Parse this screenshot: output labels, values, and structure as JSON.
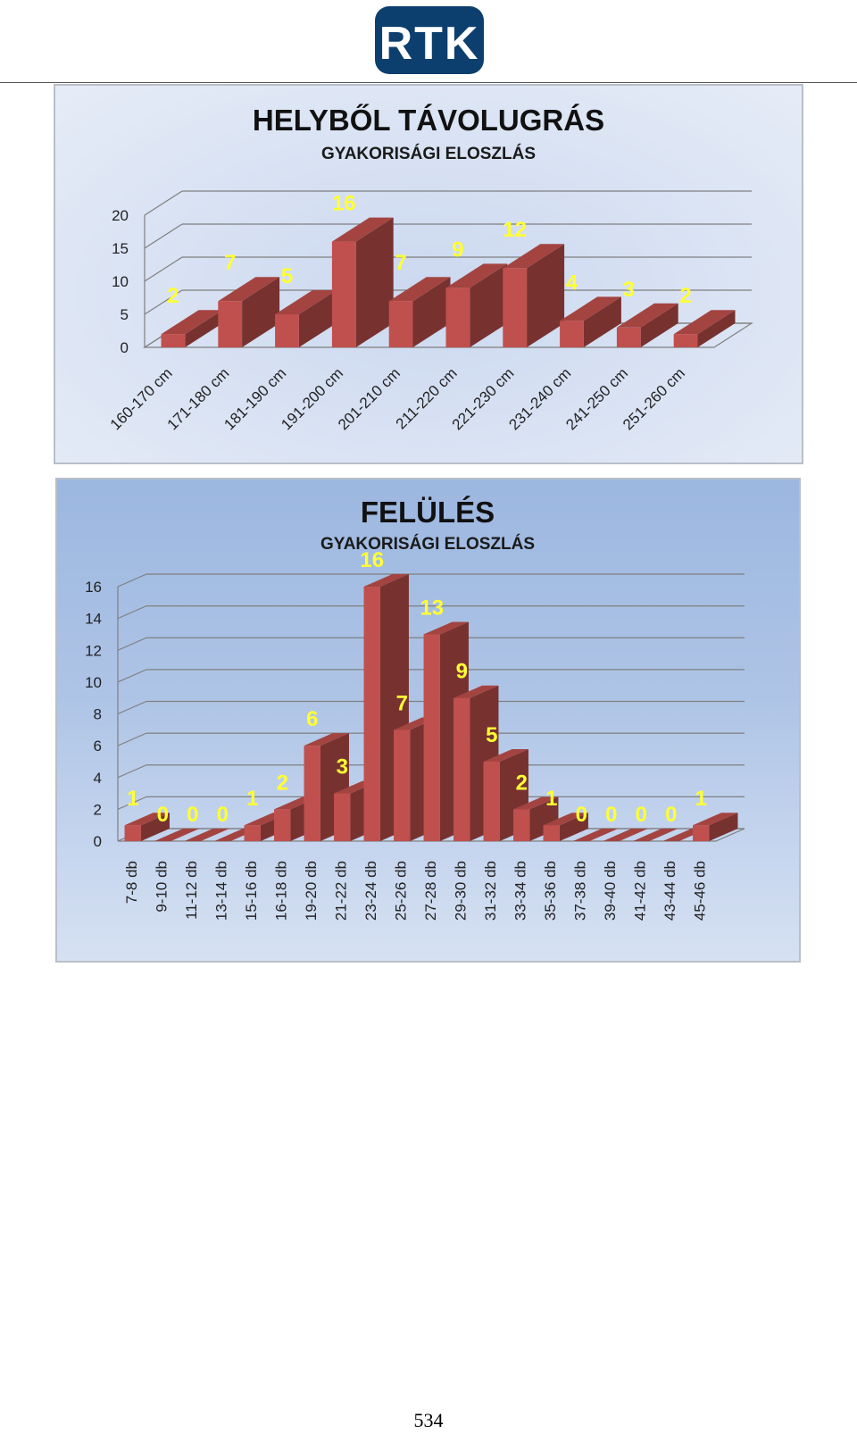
{
  "logo": {
    "text": "RTK",
    "bg_color": "#0d3f6e",
    "fg_color": "#ffffff"
  },
  "page_number": "534",
  "chart_data": [
    {
      "type": "bar",
      "title": "HELYBŐL TÁVOLUGRÁS",
      "subtitle": "GYAKORISÁGI ELOSZLÁS",
      "categories": [
        "160-170 cm",
        "171-180 cm",
        "181-190 cm",
        "191-200 cm",
        "201-210 cm",
        "211-220 cm",
        "221-230 cm",
        "231-240 cm",
        "241-250 cm",
        "251-260 cm"
      ],
      "values": [
        2,
        7,
        5,
        16,
        7,
        9,
        12,
        4,
        3,
        2
      ],
      "ylim": [
        0,
        20
      ],
      "yticks": [
        0,
        5,
        10,
        15,
        20
      ],
      "data_labels": true,
      "bar_color": "#c0504d",
      "label_color": "#ffff33",
      "grid": true,
      "style": "3d-column"
    },
    {
      "type": "bar",
      "title": "FELÜLÉS",
      "subtitle": "GYAKORISÁGI ELOSZLÁS",
      "categories": [
        "7-8 db",
        "9-10 db",
        "11-12 db",
        "13-14 db",
        "15-16 db",
        "16-18 db",
        "19-20 db",
        "21-22 db",
        "23-24 db",
        "25-26 db",
        "27-28 db",
        "29-30 db",
        "31-32 db",
        "33-34 db",
        "35-36 db",
        "37-38 db",
        "39-40 db",
        "41-42 db",
        "43-44 db",
        "45-46 db"
      ],
      "values": [
        1,
        0,
        0,
        0,
        1,
        2,
        6,
        3,
        16,
        7,
        13,
        9,
        5,
        2,
        1,
        0,
        0,
        0,
        0,
        1
      ],
      "ylim": [
        0,
        16
      ],
      "yticks": [
        0,
        2,
        4,
        6,
        8,
        10,
        12,
        14,
        16
      ],
      "data_labels": true,
      "bar_color": "#c0504d",
      "label_color": "#ffff33",
      "grid": true,
      "style": "3d-column"
    }
  ]
}
